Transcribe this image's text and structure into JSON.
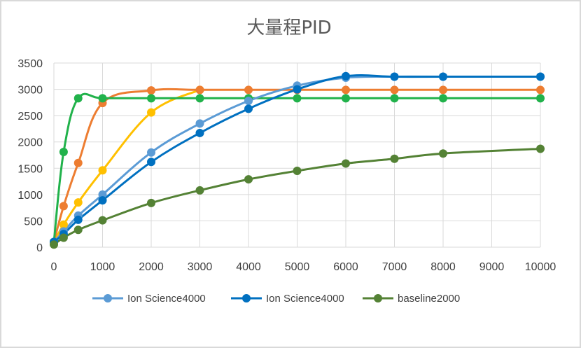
{
  "chart_data": {
    "type": "line",
    "title": "大量程PID",
    "xlabel": "",
    "ylabel": "",
    "xlim": [
      0,
      10000
    ],
    "ylim": [
      0,
      3500
    ],
    "x_ticks": [
      0,
      1000,
      2000,
      3000,
      4000,
      5000,
      6000,
      7000,
      8000,
      9000,
      10000
    ],
    "y_ticks": [
      0,
      500,
      1000,
      1500,
      2000,
      2500,
      3000,
      3500
    ],
    "grid": "vertical and horizontal",
    "legend_position": "bottom",
    "series": [
      {
        "name": "Ion Science4000",
        "color": "#5b9bd5",
        "in_legend": true,
        "x": [
          0,
          200,
          500,
          1000,
          2000,
          3000,
          4000,
          5000,
          6000,
          7000,
          8000,
          10000
        ],
        "y": [
          100,
          300,
          600,
          1000,
          1800,
          2350,
          2780,
          3070,
          3220,
          3240,
          3240,
          3240
        ]
      },
      {
        "name": "Ion Science4000",
        "color": "#0070c0",
        "in_legend": true,
        "x": [
          0,
          200,
          500,
          1000,
          2000,
          3000,
          4000,
          5000,
          6000,
          7000,
          8000,
          10000
        ],
        "y": [
          100,
          250,
          520,
          890,
          1620,
          2170,
          2630,
          3000,
          3250,
          3240,
          3240,
          3240
        ]
      },
      {
        "name": "baseline2000",
        "color": "#548235",
        "in_legend": true,
        "x": [
          0,
          200,
          500,
          1000,
          2000,
          3000,
          4000,
          5000,
          6000,
          7000,
          8000,
          10000
        ],
        "y": [
          50,
          180,
          330,
          510,
          840,
          1080,
          1290,
          1450,
          1590,
          1680,
          1780,
          1870
        ]
      },
      {
        "name": "",
        "color": "#ed7d31",
        "in_legend": false,
        "x": [
          0,
          200,
          500,
          1000,
          2000,
          3000,
          4000,
          5000,
          6000,
          7000,
          8000,
          10000
        ],
        "y": [
          100,
          780,
          1600,
          2740,
          2980,
          2990,
          2990,
          2990,
          2990,
          2990,
          2990,
          2990
        ]
      },
      {
        "name": "",
        "color": "#ffc000",
        "in_legend": false,
        "x": [
          0,
          200,
          500,
          1000,
          2000,
          3000
        ],
        "y": [
          100,
          430,
          850,
          1460,
          2560,
          2990
        ]
      },
      {
        "name": "",
        "color": "#21b24b",
        "in_legend": false,
        "x": [
          0,
          200,
          500,
          1000,
          2000,
          3000,
          4000,
          5000,
          6000,
          7000,
          8000,
          10000
        ],
        "y": [
          100,
          1810,
          2830,
          2830,
          2830,
          2830,
          2830,
          2830,
          2830,
          2830,
          2830,
          2830
        ]
      }
    ]
  }
}
